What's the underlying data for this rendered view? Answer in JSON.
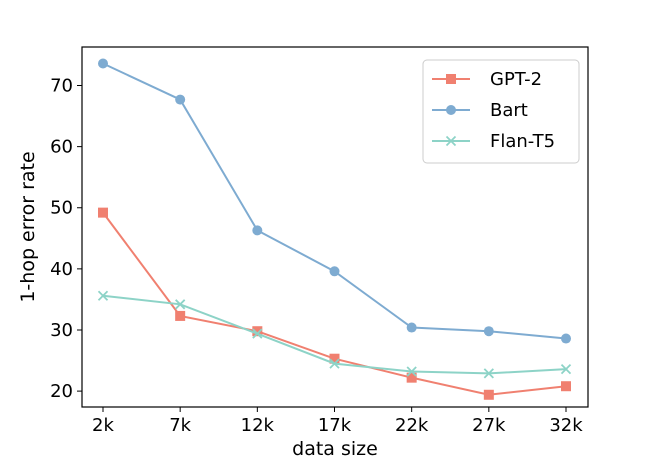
{
  "chart_data": {
    "type": "line",
    "title": "",
    "xlabel": "data size",
    "ylabel": "1-hop error rate",
    "categories": [
      "2k",
      "7k",
      "12k",
      "17k",
      "22k",
      "27k",
      "32k"
    ],
    "yticks": [
      20,
      30,
      40,
      50,
      60,
      70
    ],
    "ylim": [
      17.4,
      76.3
    ],
    "grid": false,
    "legend_position": "top-right",
    "series": [
      {
        "name": "GPT-2",
        "color": "#f08070",
        "marker": "square",
        "values": [
          49.2,
          32.3,
          29.8,
          25.3,
          22.2,
          19.4,
          20.8
        ]
      },
      {
        "name": "Bart",
        "color": "#7eabd1",
        "marker": "circle",
        "values": [
          73.6,
          67.7,
          46.3,
          39.6,
          30.4,
          29.8,
          28.6
        ]
      },
      {
        "name": "Flan-T5",
        "color": "#8dd3c7",
        "marker": "x",
        "values": [
          35.6,
          34.2,
          29.4,
          24.5,
          23.2,
          22.9,
          23.6
        ]
      }
    ]
  }
}
